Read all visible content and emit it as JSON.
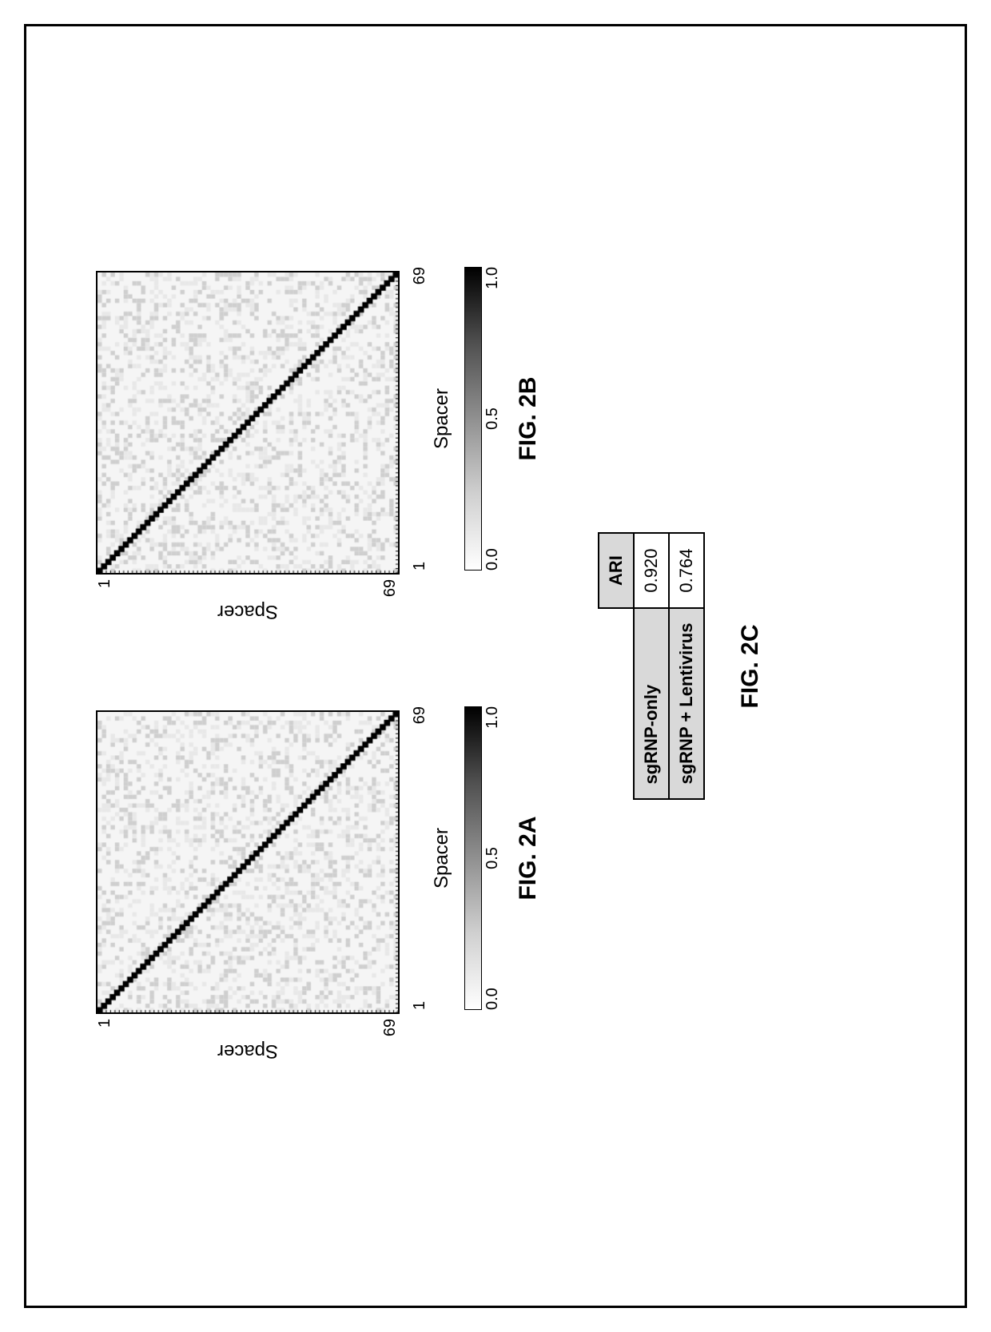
{
  "heatmap_a": {
    "type": "heatmap",
    "x_title": "Spacer",
    "y_title": "Spacer",
    "xmin": 1,
    "xmax": 69,
    "ymin": 1,
    "ymax": 69,
    "diag_color": "#000000",
    "offdiag_base": "#f5f5f5",
    "noise_low": "#e8e8e8",
    "noise_high": "#cfcfcf",
    "noise_density": 0.35,
    "border_color": "#000000",
    "colorbar": {
      "min_label": "0.0",
      "mid_label": "0.5",
      "max_label": "1.0",
      "gradient_from": "#ffffff",
      "gradient_to": "#000000"
    },
    "fig_label": "FIG. 2A",
    "fig_label_fontsize": 30
  },
  "heatmap_b": {
    "type": "heatmap",
    "x_title": "Spacer",
    "y_title": "Spacer",
    "xmin": 1,
    "xmax": 69,
    "ymin": 1,
    "ymax": 69,
    "diag_color": "#000000",
    "offdiag_base": "#f5f5f5",
    "noise_low": "#e8e8e8",
    "noise_high": "#cfcfcf",
    "noise_density": 0.35,
    "border_color": "#000000",
    "colorbar": {
      "min_label": "0.0",
      "mid_label": "0.5",
      "max_label": "1.0",
      "gradient_from": "#ffffff",
      "gradient_to": "#000000"
    },
    "fig_label": "FIG. 2B",
    "fig_label_fontsize": 30
  },
  "table_c": {
    "type": "table",
    "header": "ARI",
    "rows": [
      {
        "label": "sgRNP-only",
        "value": "0.920"
      },
      {
        "label": "sgRNP + Lentivirus",
        "value": "0.764"
      }
    ],
    "header_bg": "#d9d9d9",
    "cell_border": "#000000",
    "fig_label": "FIG. 2C",
    "fig_label_fontsize": 30
  }
}
